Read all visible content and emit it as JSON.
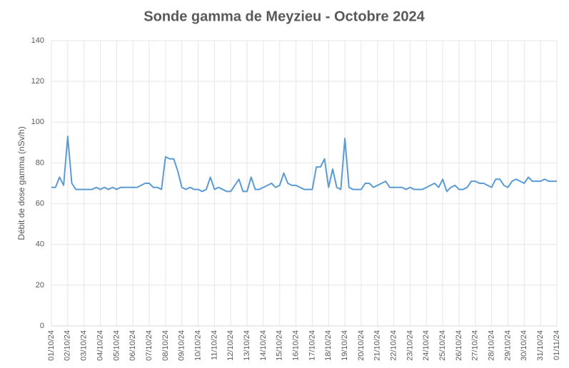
{
  "chart_data": {
    "type": "line",
    "title": "Sonde gamma de Meyzieu - Octobre 2024",
    "y_label": "Débit de dose gamma (nSv/h)",
    "categories": [
      "01/10/24",
      null,
      null,
      null,
      "02/10/24",
      null,
      null,
      null,
      "03/10/24",
      null,
      null,
      null,
      "04/10/24",
      null,
      null,
      null,
      "05/10/24",
      null,
      null,
      null,
      "06/10/24",
      null,
      null,
      null,
      "07/10/24",
      null,
      null,
      null,
      "08/10/24",
      null,
      null,
      null,
      "09/10/24",
      null,
      null,
      null,
      "10/10/24",
      null,
      null,
      null,
      "11/10/24",
      null,
      null,
      null,
      "12/10/24",
      null,
      null,
      null,
      "13/10/24",
      null,
      null,
      null,
      "14/10/24",
      null,
      null,
      null,
      "15/10/24",
      null,
      null,
      null,
      "16/10/24",
      null,
      null,
      null,
      "17/10/24",
      null,
      null,
      null,
      "18/10/24",
      null,
      null,
      null,
      "19/10/24",
      null,
      null,
      null,
      "20/10/24",
      null,
      null,
      null,
      "21/10/24",
      null,
      null,
      null,
      "22/10/24",
      null,
      null,
      null,
      "23/10/24",
      null,
      null,
      null,
      "24/10/24",
      null,
      null,
      null,
      "25/10/24",
      null,
      null,
      null,
      "26/10/24",
      null,
      null,
      null,
      "27/10/24",
      null,
      null,
      null,
      "28/10/24",
      null,
      null,
      null,
      "29/10/24",
      null,
      null,
      null,
      "30/10/24",
      null,
      null,
      null,
      "31/10/24",
      null,
      null,
      null,
      "01/11/24"
    ],
    "series": [
      {
        "name": "Débit de dose gamma",
        "color": "#5b9bd5",
        "values": [
          68,
          68,
          73,
          69,
          93,
          70,
          67,
          67,
          67,
          67,
          67,
          68,
          67,
          68,
          67,
          68,
          67,
          68,
          68,
          68,
          68,
          68,
          69,
          70,
          70,
          68,
          68,
          67,
          83,
          82,
          82,
          76,
          68,
          67,
          68,
          67,
          67,
          66,
          67,
          73,
          67,
          68,
          67,
          66,
          66,
          69,
          72,
          66,
          66,
          73,
          67,
          67,
          68,
          69,
          70,
          68,
          69,
          75,
          70,
          69,
          69,
          68,
          67,
          67,
          67,
          78,
          78,
          82,
          68,
          77,
          68,
          67,
          92,
          68,
          67,
          67,
          67,
          70,
          70,
          68,
          69,
          70,
          71,
          68,
          68,
          68,
          68,
          67,
          68,
          67,
          67,
          67,
          68,
          69,
          70,
          68,
          72,
          66,
          68,
          69,
          67,
          67,
          68,
          71,
          71,
          70,
          70,
          69,
          68,
          72,
          72,
          69,
          68,
          71,
          72,
          71,
          70,
          73,
          71,
          71,
          71,
          72,
          71,
          71,
          71
        ]
      }
    ],
    "ylim": [
      0,
      140
    ],
    "yticks": [
      0,
      20,
      40,
      60,
      80,
      100,
      120,
      140
    ],
    "grid": true
  }
}
